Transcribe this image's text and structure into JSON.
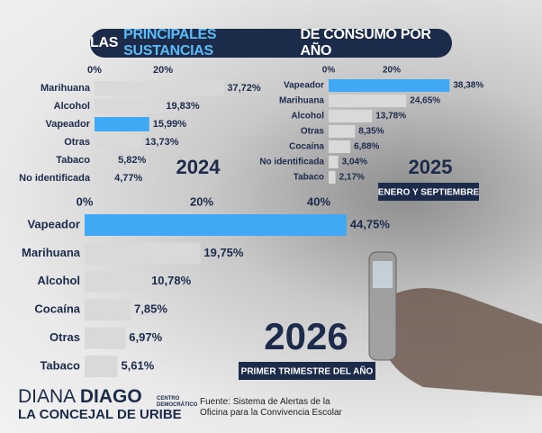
{
  "header": {
    "title": [
      "LAS",
      "PRINCIPALES SUSTANCIAS",
      "DE CONSUMO POR AÑO"
    ]
  },
  "chart_data": [
    {
      "type": "bar",
      "title": "2024",
      "categories": [
        "Marihuana",
        "Alcohol",
        "Vapeador",
        "Otras",
        "Tabaco",
        "No identificada"
      ],
      "values": [
        37.72,
        19.83,
        15.99,
        13.73,
        5.82,
        4.77
      ],
      "value_labels": [
        "37,72%",
        "19,83%",
        "15,99%",
        "13,73%",
        "5,82%",
        "4,77%"
      ],
      "colors": [
        "#d9d9d9",
        "#d9d9d9",
        "#3fa9f5",
        "#d9d9d9",
        "#d9d9d9",
        "#d9d9d9"
      ],
      "xlim": [
        0,
        40
      ],
      "xticks": [
        {
          "value": 0,
          "label": "0%"
        },
        {
          "value": 20,
          "label": "20%"
        }
      ]
    },
    {
      "type": "bar",
      "title": "2025",
      "subtitle": "ENERO Y SEPTIEMBRE",
      "categories": [
        "Vapeador",
        "Marihuana",
        "Alcohol",
        "Otras",
        "Cocaína",
        "No identificada",
        "Tabaco"
      ],
      "values": [
        38.38,
        24.65,
        13.78,
        8.35,
        6.88,
        3.04,
        2.17
      ],
      "value_labels": [
        "38,38%",
        "24,65%",
        "13,78%",
        "8,35%",
        "6,88%",
        "3,04%",
        "2,17%"
      ],
      "colors": [
        "#3fa9f5",
        "#d9d9d9",
        "#d9d9d9",
        "#d9d9d9",
        "#d9d9d9",
        "#d9d9d9",
        "#d9d9d9"
      ],
      "xlim": [
        0,
        40
      ],
      "xticks": [
        {
          "value": 0,
          "label": "0%"
        },
        {
          "value": 20,
          "label": "20%"
        }
      ]
    },
    {
      "type": "bar",
      "title": "2026",
      "subtitle": "PRIMER TRIMESTRE DEL AÑO",
      "categories": [
        "Vapeador",
        "Marihuana",
        "Alcohol",
        "Cocaína",
        "Otras",
        "Tabaco"
      ],
      "values": [
        44.75,
        19.75,
        10.78,
        7.85,
        6.97,
        5.61
      ],
      "value_labels": [
        "44,75%",
        "19,75%",
        "10,78%",
        "7,85%",
        "6,97%",
        "5,61%"
      ],
      "colors": [
        "#3fa9f5",
        "#d9d9d9",
        "#d9d9d9",
        "#d9d9d9",
        "#d9d9d9",
        "#d9d9d9"
      ],
      "xlim": [
        0,
        40
      ],
      "xticks": [
        {
          "value": 0,
          "label": "0%"
        },
        {
          "value": 20,
          "label": "20%"
        },
        {
          "value": 40,
          "label": "40%"
        }
      ]
    }
  ],
  "footer": {
    "name_first": "DIANA",
    "name_last": "DIAGO",
    "tagline": "LA CONCEJAL DE URIBE",
    "party": "CENTRO DEMOCRÁTICO",
    "source": [
      "Fuente: Sistema de Alertas de la",
      "Oficina para la Convivencia Escolar"
    ]
  }
}
